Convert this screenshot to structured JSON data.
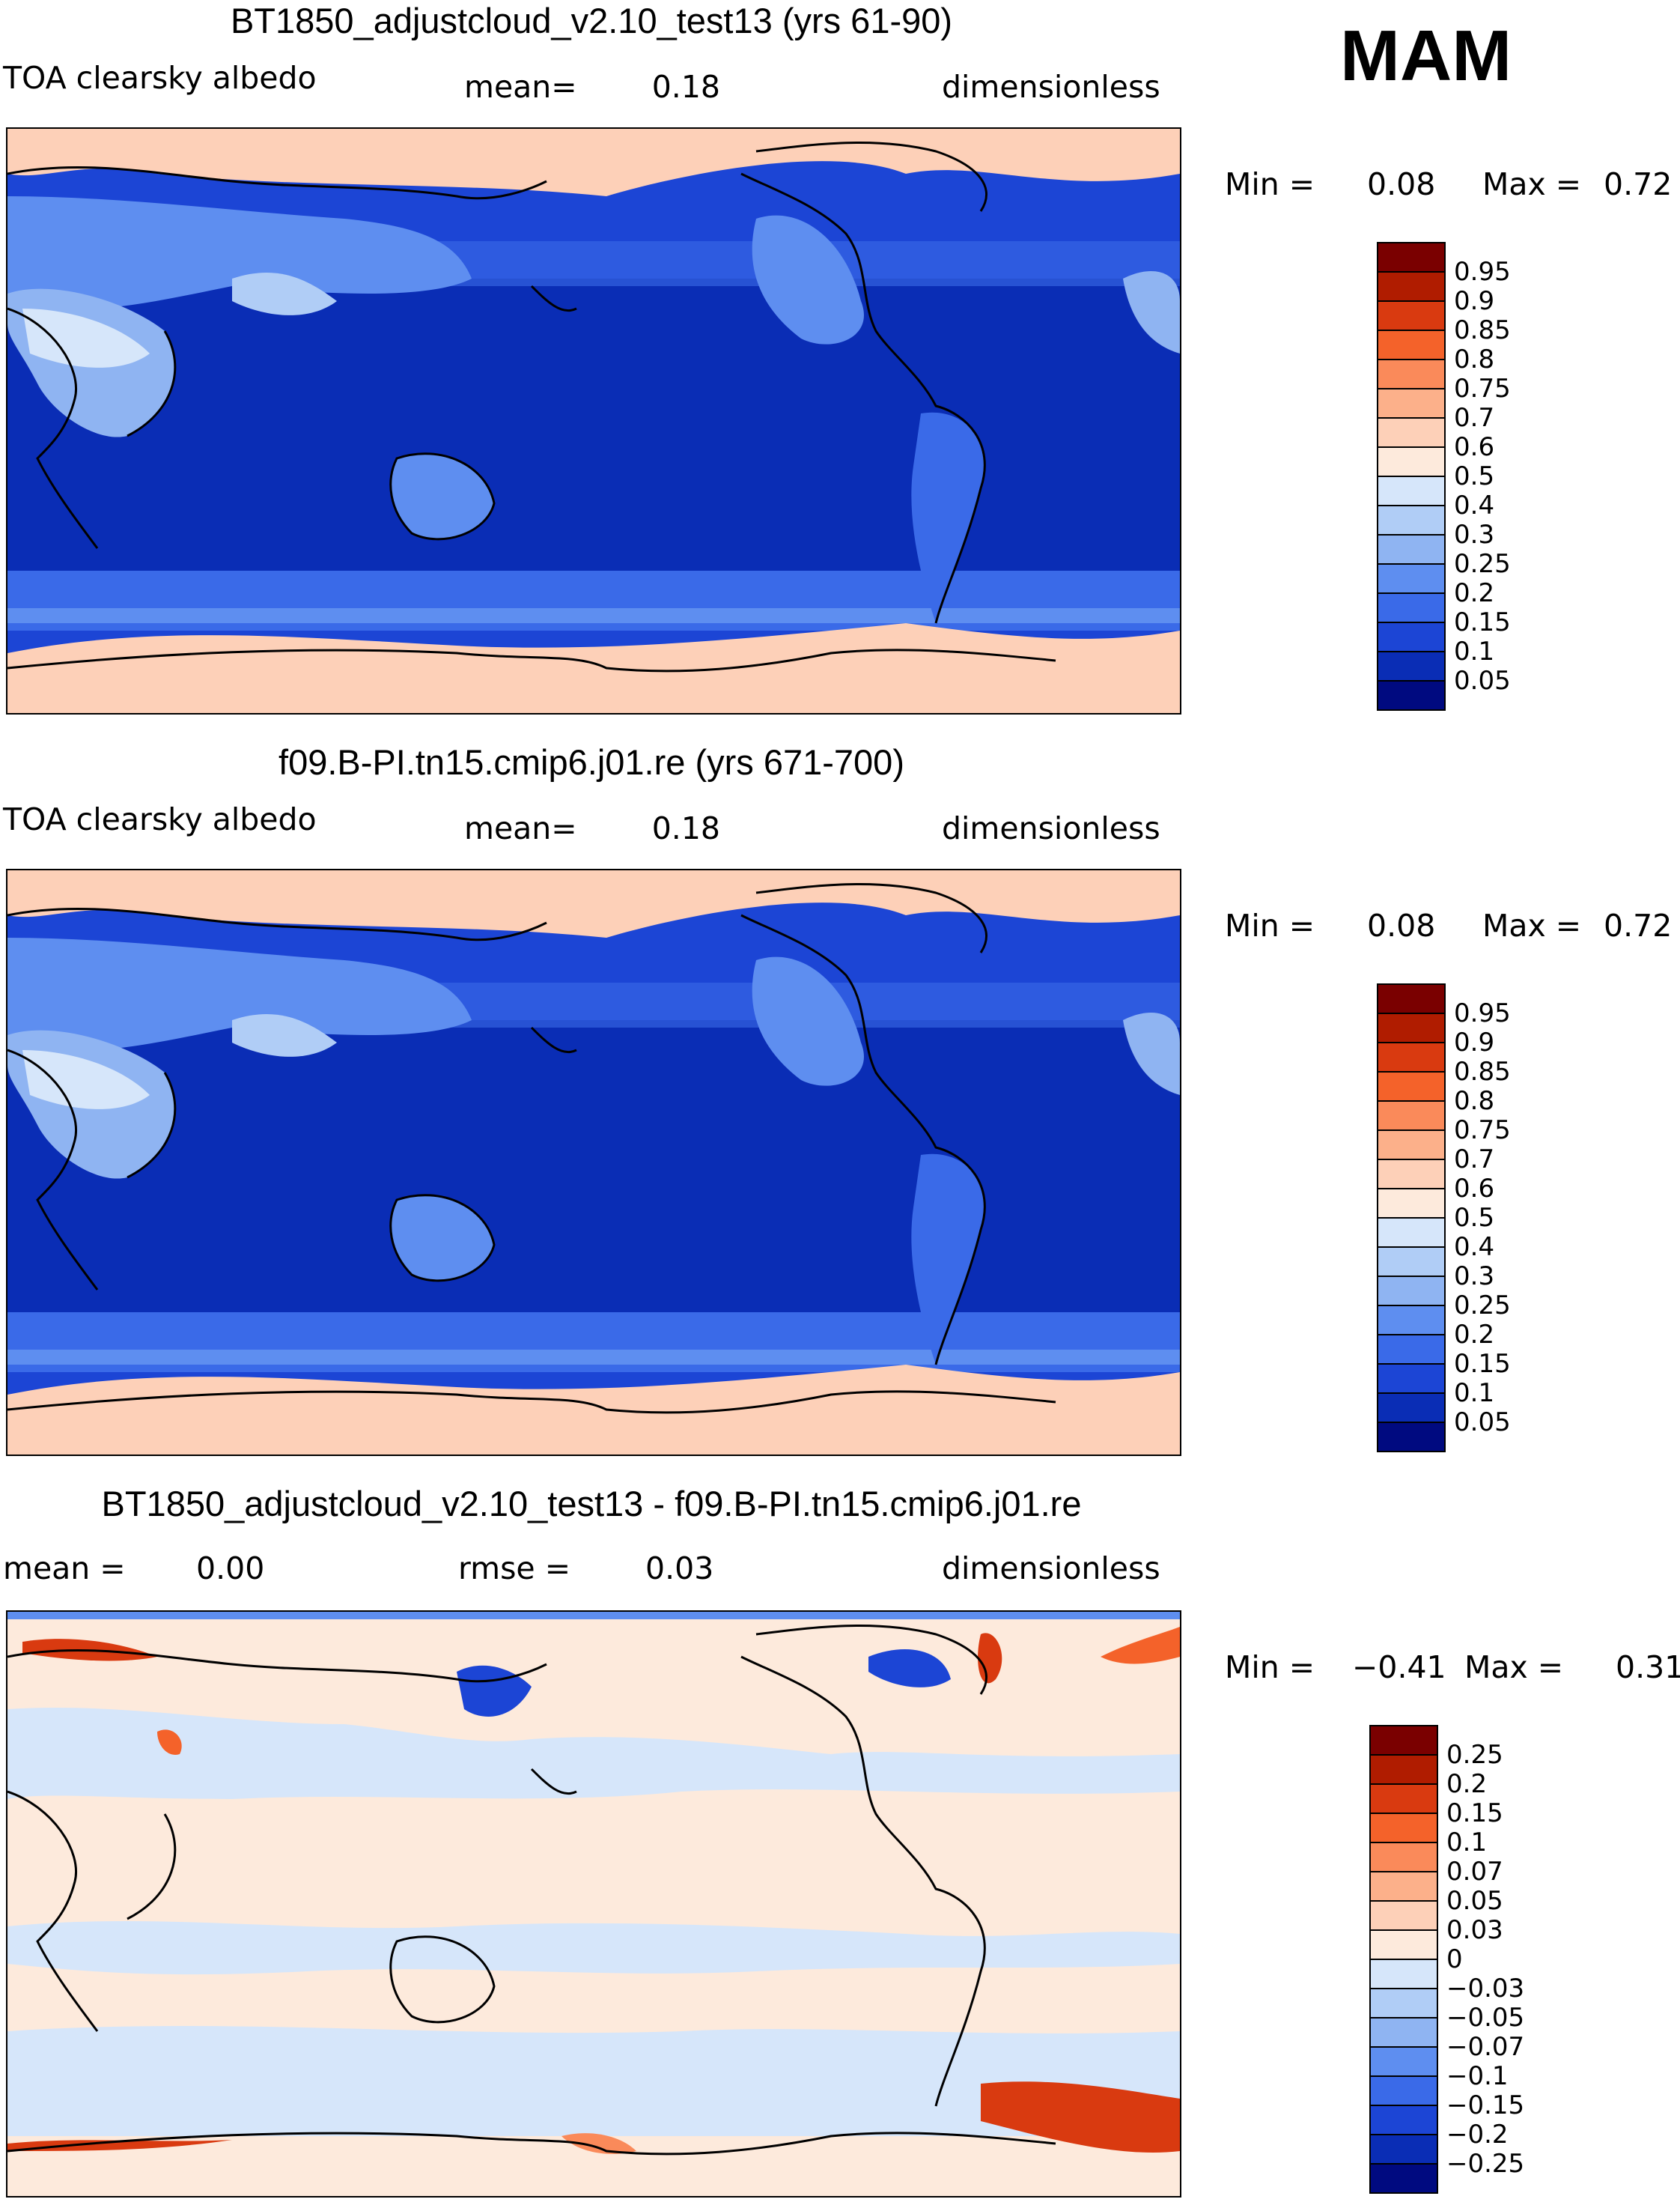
{
  "season": "MAM",
  "colors": {
    "land_border": "#000000"
  },
  "panels": [
    {
      "title": "BT1850_adjustcloud_v2.10_test13 (yrs 61-90)",
      "variable": "TOA clearsky albedo",
      "stat1_label": "mean=",
      "stat1_value": "0.18",
      "units": "dimensionless",
      "min_label": "Min =",
      "min_value": "0.08",
      "max_label": "Max =",
      "max_value": "0.72",
      "colorbar": {
        "labels": [
          "0.95",
          "0.9",
          "0.85",
          "0.8",
          "0.75",
          "0.7",
          "0.6",
          "0.5",
          "0.4",
          "0.3",
          "0.25",
          "0.2",
          "0.15",
          "0.1",
          "0.05"
        ],
        "colors": [
          "#7a0000",
          "#b01c00",
          "#d93a10",
          "#f4622a",
          "#fa8a5a",
          "#fcb08a",
          "#fdd0b8",
          "#fdeadc",
          "#d6e6fa",
          "#b0cdf6",
          "#8fb4f2",
          "#5e8ef0",
          "#3a6ae8",
          "#1c45d5",
          "#0a2db5",
          "#000a80"
        ]
      },
      "layout_scheme": "abs"
    },
    {
      "title": "f09.B-PI.tn15.cmip6.j01.re (yrs 671-700)",
      "variable": "TOA clearsky albedo",
      "stat1_label": "mean=",
      "stat1_value": "0.18",
      "units": "dimensionless",
      "min_label": "Min =",
      "min_value": "0.08",
      "max_label": "Max =",
      "max_value": "0.72",
      "colorbar": {
        "labels": [
          "0.95",
          "0.9",
          "0.85",
          "0.8",
          "0.75",
          "0.7",
          "0.6",
          "0.5",
          "0.4",
          "0.3",
          "0.25",
          "0.2",
          "0.15",
          "0.1",
          "0.05"
        ],
        "colors": [
          "#7a0000",
          "#b01c00",
          "#d93a10",
          "#f4622a",
          "#fa8a5a",
          "#fcb08a",
          "#fdd0b8",
          "#fdeadc",
          "#d6e6fa",
          "#b0cdf6",
          "#8fb4f2",
          "#5e8ef0",
          "#3a6ae8",
          "#1c45d5",
          "#0a2db5",
          "#000a80"
        ]
      },
      "layout_scheme": "abs"
    },
    {
      "title": "BT1850_adjustcloud_v2.10_test13 - f09.B-PI.tn15.cmip6.j01.re",
      "stat1_label": "mean =",
      "stat1_value": "0.00",
      "stat2_label": "rmse =",
      "stat2_value": "0.03",
      "units": "dimensionless",
      "min_label": "Min =",
      "min_value": "−0.41",
      "max_label": "Max =",
      "max_value": "0.31",
      "colorbar": {
        "labels": [
          "0.25",
          "0.2",
          "0.15",
          "0.1",
          "0.07",
          "0.05",
          "0.03",
          "0",
          "−0.03",
          "−0.05",
          "−0.07",
          "−0.1",
          "−0.15",
          "−0.2",
          "−0.25"
        ],
        "colors": [
          "#7a0000",
          "#b01c00",
          "#d93a10",
          "#f4622a",
          "#fa8a5a",
          "#fcb08a",
          "#fdd0b8",
          "#fdeadc",
          "#d6e6fa",
          "#b0cdf6",
          "#8fb4f2",
          "#5e8ef0",
          "#3a6ae8",
          "#1c45d5",
          "#0a2db5",
          "#000a80"
        ]
      },
      "layout_scheme": "diff"
    }
  ]
}
